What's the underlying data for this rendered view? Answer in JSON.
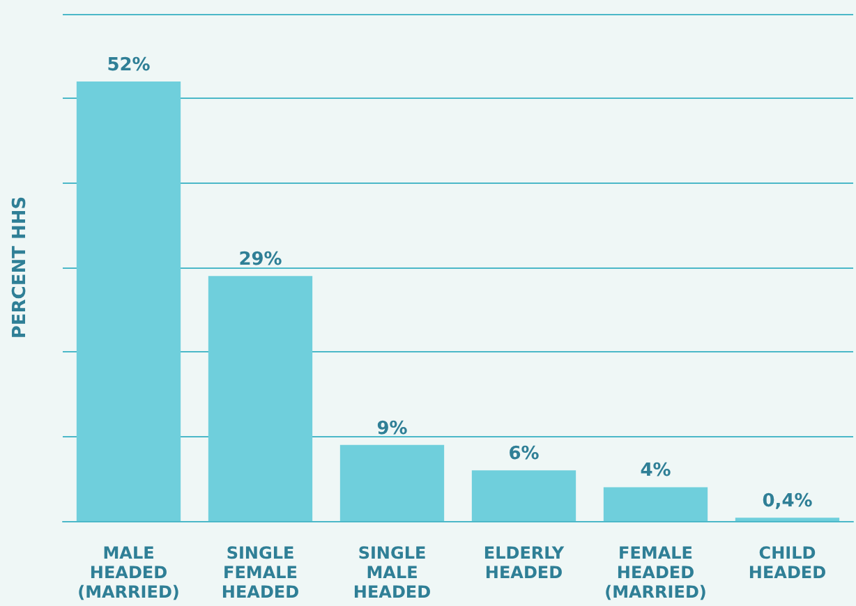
{
  "chart_data": {
    "type": "bar",
    "ylabel": "PERCENT HHS",
    "categories": [
      "MALE\nHEADED\n(MARRIED)",
      "SINGLE\nFEMALE\nHEADED",
      "SINGLE\nMALE\nHEADED",
      "ELDERLY\nHEADED",
      "FEMALE\nHEADED\n(MARRIED)",
      "CHILD\nHEADED"
    ],
    "values": [
      52,
      29,
      9,
      6,
      4,
      0.4
    ],
    "value_labels": [
      "52%",
      "29%",
      "9%",
      "6%",
      "4%",
      "0,4%"
    ],
    "color": "#6fcfdc",
    "ylim": [
      0,
      60
    ],
    "yticks": [
      {
        "value": 0,
        "label": null
      },
      {
        "value": 10,
        "label": null
      },
      {
        "value": 20,
        "label": null
      },
      {
        "value": 30,
        "label": null
      },
      {
        "value": 40,
        "label": null
      },
      {
        "value": 50,
        "label": null
      },
      {
        "value": 60,
        "label": null
      }
    ],
    "tick_labels": "x",
    "grid": "y"
  }
}
